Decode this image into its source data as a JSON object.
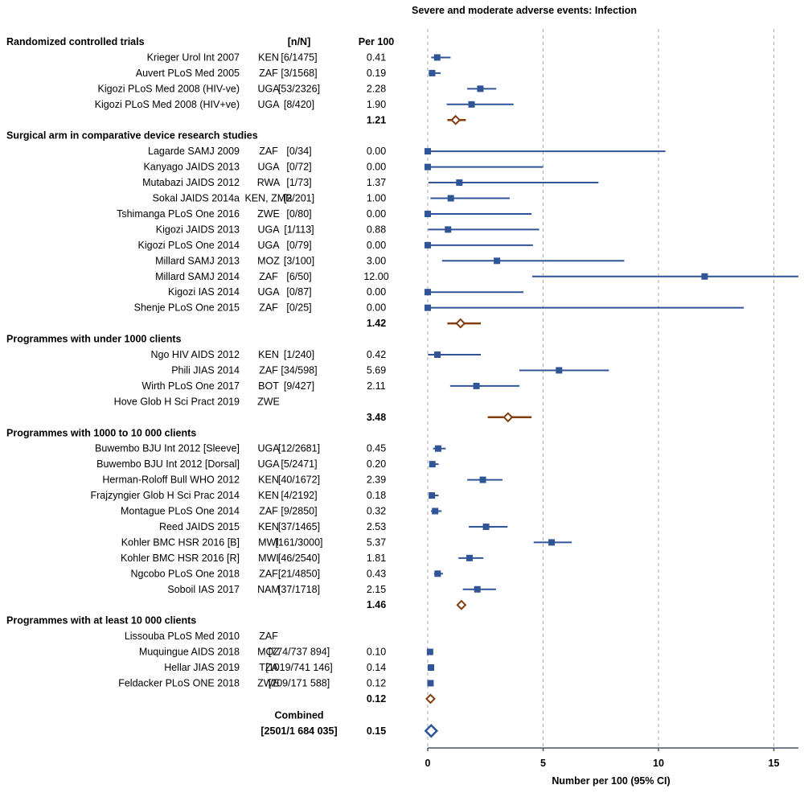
{
  "chart_data": {
    "type": "forest",
    "title": "Severe and moderate adverse events: Infection",
    "xlabel": "Number per 100  (95% CI)",
    "xlim": [
      0,
      16
    ],
    "xticks": [
      0,
      5,
      10,
      15
    ],
    "grid": "vertical-dashed",
    "column_headers": {
      "nN": "[n/N]",
      "per100": "Per 100"
    },
    "colors": {
      "study": "#2f5597",
      "subgroup": "#843c0c",
      "overall": "#2f5597",
      "grid": "#aaaaaa",
      "axis": "#44546a"
    },
    "groups": [
      {
        "name": "Randomized controlled trials",
        "studies": [
          {
            "label": "Krieger Urol Int 2007",
            "country": "KEN",
            "nN": "[6/1475]",
            "per100": "0.41",
            "est": 0.41,
            "lo": 0.15,
            "hi": 0.99
          },
          {
            "label": "Auvert PLoS Med 2005",
            "country": "ZAF",
            "nN": "[3/1568]",
            "per100": "0.19",
            "est": 0.19,
            "lo": 0.04,
            "hi": 0.56
          },
          {
            "label": "Kigozi PLoS Med 2008 (HIV-ve)",
            "country": "UGA",
            "nN": "[53/2326]",
            "per100": "2.28",
            "est": 2.28,
            "lo": 1.71,
            "hi": 2.97
          },
          {
            "label": "Kigozi PLoS Med 2008 (HIV+ve)",
            "country": "UGA",
            "nN": "[8/420]",
            "per100": "1.90",
            "est": 1.9,
            "lo": 0.82,
            "hi": 3.72
          }
        ],
        "summary": {
          "per100": "1.21",
          "est": 1.21,
          "lo": 0.85,
          "hi": 1.65
        }
      },
      {
        "name": "Surgical arm in comparative device research studies",
        "studies": [
          {
            "label": "Lagarde SAMJ 2009",
            "country": "ZAF",
            "nN": "[0/34]",
            "per100": "0.00",
            "est": 0.0,
            "lo": 0.0,
            "hi": 10.3
          },
          {
            "label": "Kanyago JAIDS 2013",
            "country": "UGA",
            "nN": "[0/72]",
            "per100": "0.00",
            "est": 0.0,
            "lo": 0.0,
            "hi": 5.0
          },
          {
            "label": "Mutabazi JAIDS 2012",
            "country": "RWA",
            "nN": "[1/73]",
            "per100": "1.37",
            "est": 1.37,
            "lo": 0.03,
            "hi": 7.4
          },
          {
            "label": "Sokal JAIDS 2014a",
            "country": "KEN, ZMB",
            "nN": "[2/201]",
            "per100": "1.00",
            "est": 1.0,
            "lo": 0.12,
            "hi": 3.55
          },
          {
            "label": "Tshimanga PLoS One 2016",
            "country": "ZWE",
            "nN": "[0/80]",
            "per100": "0.00",
            "est": 0.0,
            "lo": 0.0,
            "hi": 4.5
          },
          {
            "label": "Kigozi JAIDS 2013",
            "country": "UGA",
            "nN": "[1/113]",
            "per100": "0.88",
            "est": 0.88,
            "lo": 0.02,
            "hi": 4.83
          },
          {
            "label": "Kigozi PLoS One 2014",
            "country": "UGA",
            "nN": "[0/79]",
            "per100": "0.00",
            "est": 0.0,
            "lo": 0.0,
            "hi": 4.56
          },
          {
            "label": "Millard SAMJ 2013",
            "country": "MOZ",
            "nN": "[3/100]",
            "per100": "3.00",
            "est": 3.0,
            "lo": 0.62,
            "hi": 8.52
          },
          {
            "label": "Millard SAMJ 2014",
            "country": "ZAF",
            "nN": "[6/50]",
            "per100": "12.00",
            "est": 12.0,
            "lo": 4.53,
            "hi": 24.3
          },
          {
            "label": "Kigozi IAS 2014",
            "country": "UGA",
            "nN": "[0/87]",
            "per100": "0.00",
            "est": 0.0,
            "lo": 0.0,
            "hi": 4.15
          },
          {
            "label": "Shenje PLoS One 2015",
            "country": "ZAF",
            "nN": "[0/25]",
            "per100": "0.00",
            "est": 0.0,
            "lo": 0.0,
            "hi": 13.7
          }
        ],
        "summary": {
          "per100": "1.42",
          "est": 1.42,
          "lo": 0.85,
          "hi": 2.3
        }
      },
      {
        "name": "Programmes with under 1000 clients",
        "studies": [
          {
            "label": "Ngo HIV AIDS 2012",
            "country": "KEN",
            "nN": "[1/240]",
            "per100": "0.42",
            "est": 0.42,
            "lo": 0.01,
            "hi": 2.3
          },
          {
            "label": "Phili JIAS 2014",
            "country": "ZAF",
            "nN": "[34/598]",
            "per100": "5.69",
            "est": 5.69,
            "lo": 3.97,
            "hi": 7.85
          },
          {
            "label": "Wirth PLoS One 2017",
            "country": "BOT",
            "nN": "[9/427]",
            "per100": "2.11",
            "est": 2.11,
            "lo": 0.97,
            "hi": 3.97
          },
          {
            "label": "Hove Glob H Sci Pract 2019",
            "country": "ZWE",
            "nN": "",
            "per100": "",
            "est": null,
            "lo": null,
            "hi": null
          }
        ],
        "summary": {
          "per100": "3.48",
          "est": 3.48,
          "lo": 2.6,
          "hi": 4.5
        }
      },
      {
        "name": "Programmes with 1000 to 10 000 clients",
        "studies": [
          {
            "label": "Buwembo BJU Int 2012 [Sleeve]",
            "country": "UGA",
            "nN": "[12/2681]",
            "per100": "0.45",
            "est": 0.45,
            "lo": 0.23,
            "hi": 0.78
          },
          {
            "label": "Buwembo BJU Int 2012 [Dorsal]",
            "country": "UGA",
            "nN": "[5/2471]",
            "per100": "0.20",
            "est": 0.2,
            "lo": 0.07,
            "hi": 0.47
          },
          {
            "label": "Herman-Roloff Bull WHO 2012",
            "country": "KEN",
            "nN": "[40/1672]",
            "per100": "2.39",
            "est": 2.39,
            "lo": 1.71,
            "hi": 3.24
          },
          {
            "label": "Frajzyngier Glob H Sci Prac 2014",
            "country": "KEN",
            "nN": "[4/2192]",
            "per100": "0.18",
            "est": 0.18,
            "lo": 0.05,
            "hi": 0.47
          },
          {
            "label": "Montague PLoS One 2014",
            "country": "ZAF",
            "nN": "[9/2850]",
            "per100": "0.32",
            "est": 0.32,
            "lo": 0.14,
            "hi": 0.6
          },
          {
            "label": "Reed JAIDS 2015",
            "country": "KEN",
            "nN": "[37/1465]",
            "per100": "2.53",
            "est": 2.53,
            "lo": 1.78,
            "hi": 3.46
          },
          {
            "label": "Kohler BMC HSR 2016 [B]",
            "country": "MWI",
            "nN": "[161/3000]",
            "per100": "5.37",
            "est": 5.37,
            "lo": 4.59,
            "hi": 6.24
          },
          {
            "label": "Kohler BMC HSR 2016 [R]",
            "country": "MWI",
            "nN": "[46/2540]",
            "per100": "1.81",
            "est": 1.81,
            "lo": 1.33,
            "hi": 2.41
          },
          {
            "label": "Ngcobo PLoS One 2018",
            "country": "ZAF",
            "nN": "[21/4850]",
            "per100": "0.43",
            "est": 0.43,
            "lo": 0.27,
            "hi": 0.66
          },
          {
            "label": "Soboil IAS 2017",
            "country": "NAM",
            "nN": "[37/1718]",
            "per100": "2.15",
            "est": 2.15,
            "lo": 1.52,
            "hi": 2.96
          }
        ],
        "summary": {
          "per100": "1.46",
          "est": 1.46,
          "lo": 1.3,
          "hi": 1.65
        }
      },
      {
        "name": "Programmes with at least 10 000 clients",
        "studies": [
          {
            "label": "Lissouba PLoS Med 2010",
            "country": "ZAF",
            "nN": "",
            "per100": "",
            "est": null,
            "lo": null,
            "hi": null
          },
          {
            "label": "Muquingue AIDS 2018",
            "country": "MOZ",
            "nN": "[774/737 894]",
            "per100": "0.10",
            "est": 0.1,
            "lo": 0.1,
            "hi": 0.11
          },
          {
            "label": "Hellar JIAS 2019",
            "country": "TZA",
            "nN": "[1019/741 146]",
            "per100": "0.14",
            "est": 0.14,
            "lo": 0.13,
            "hi": 0.15
          },
          {
            "label": "Feldacker PLoS ONE 2018",
            "country": "ZWE",
            "nN": "[209/171 588]",
            "per100": "0.12",
            "est": 0.12,
            "lo": 0.11,
            "hi": 0.14
          }
        ],
        "summary": {
          "per100": "0.12",
          "est": 0.12,
          "lo": 0.09,
          "hi": 0.16
        }
      }
    ],
    "combined": {
      "label": "Combined",
      "nN": "[2501/1 684 035]",
      "per100": "0.15",
      "est": 0.15,
      "lo": 0.1,
      "hi": 0.2
    }
  }
}
